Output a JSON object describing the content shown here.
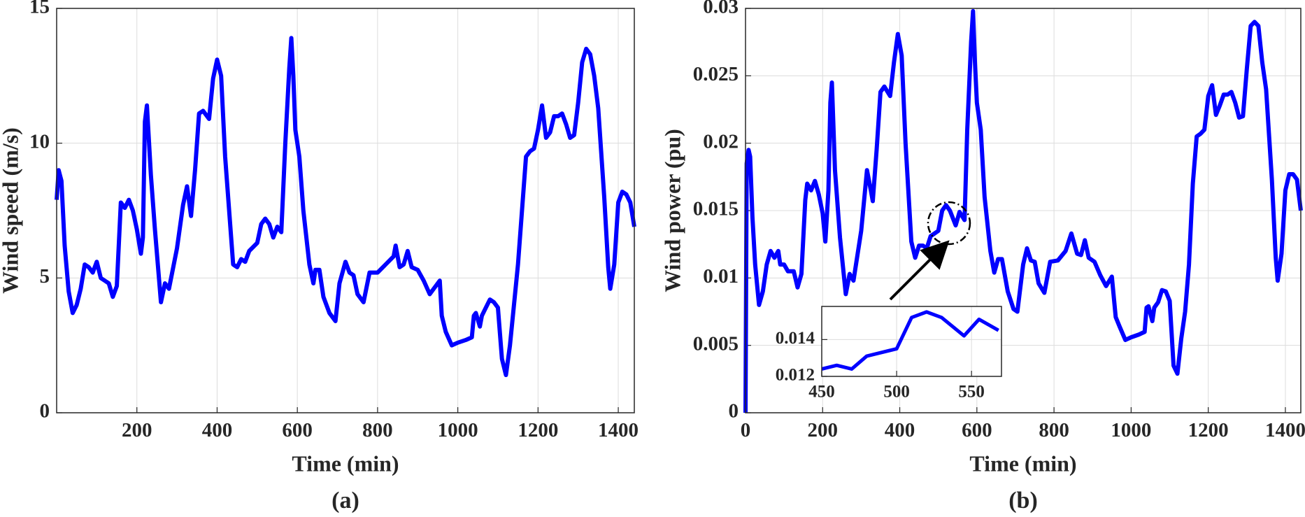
{
  "chart_data": [
    {
      "type": "line",
      "caption": "(a)",
      "xlabel": "Time (min)",
      "ylabel": "Wind speed (m/s)",
      "color": "#0000ff",
      "grid": true,
      "xlim": [
        0,
        1440
      ],
      "ylim": [
        0,
        15
      ],
      "xticks": [
        200,
        400,
        600,
        800,
        1000,
        1200,
        1400
      ],
      "yticks": [
        0,
        5,
        10,
        15
      ],
      "x": [
        0,
        5,
        12,
        20,
        30,
        40,
        50,
        60,
        70,
        80,
        90,
        100,
        110,
        120,
        130,
        140,
        150,
        160,
        170,
        180,
        190,
        200,
        210,
        215,
        220,
        225,
        235,
        245,
        260,
        270,
        280,
        300,
        315,
        325,
        335,
        345,
        355,
        365,
        380,
        390,
        400,
        410,
        420,
        440,
        450,
        460,
        470,
        480,
        500,
        510,
        520,
        530,
        540,
        550,
        560,
        570,
        580,
        585,
        590,
        595,
        605,
        615,
        630,
        640,
        645,
        655,
        665,
        680,
        695,
        705,
        720,
        730,
        740,
        750,
        765,
        780,
        800,
        820,
        840,
        845,
        855,
        865,
        875,
        885,
        900,
        915,
        930,
        945,
        955,
        960,
        970,
        985,
        1000,
        1020,
        1035,
        1040,
        1045,
        1055,
        1060,
        1070,
        1080,
        1090,
        1100,
        1110,
        1120,
        1130,
        1140,
        1150,
        1160,
        1170,
        1180,
        1190,
        1200,
        1210,
        1220,
        1230,
        1240,
        1250,
        1260,
        1270,
        1280,
        1290,
        1300,
        1310,
        1320,
        1330,
        1340,
        1350,
        1365,
        1375,
        1380,
        1390,
        1400,
        1410,
        1420,
        1430,
        1440
      ],
      "values": [
        7.9,
        9.0,
        8.6,
        6.2,
        4.5,
        3.7,
        4.0,
        4.6,
        5.5,
        5.4,
        5.2,
        5.6,
        5.0,
        4.9,
        4.8,
        4.3,
        4.7,
        7.8,
        7.6,
        7.9,
        7.5,
        6.8,
        5.9,
        6.5,
        10.8,
        11.4,
        8.8,
        6.8,
        4.1,
        4.8,
        4.6,
        6.1,
        7.7,
        8.4,
        7.3,
        9.0,
        11.1,
        11.2,
        10.9,
        12.4,
        13.1,
        12.5,
        9.5,
        5.5,
        5.4,
        5.7,
        5.6,
        6.0,
        6.3,
        7.0,
        7.2,
        7.0,
        6.5,
        6.9,
        6.7,
        10.0,
        12.8,
        13.9,
        12.5,
        10.5,
        9.5,
        7.5,
        5.5,
        4.8,
        5.3,
        5.3,
        4.3,
        3.7,
        3.4,
        4.8,
        5.6,
        5.2,
        5.1,
        4.4,
        4.1,
        5.2,
        5.2,
        5.5,
        5.8,
        6.2,
        5.4,
        5.5,
        6.0,
        5.4,
        5.3,
        4.9,
        4.4,
        4.7,
        4.9,
        3.6,
        3.0,
        2.5,
        2.6,
        2.7,
        2.8,
        3.6,
        3.7,
        3.2,
        3.6,
        3.9,
        4.2,
        4.1,
        3.9,
        2.0,
        1.4,
        2.5,
        4.0,
        5.5,
        7.5,
        9.5,
        9.7,
        9.8,
        10.5,
        11.4,
        10.2,
        10.4,
        11.0,
        11.0,
        11.1,
        10.7,
        10.2,
        10.3,
        11.5,
        13.0,
        13.5,
        13.3,
        12.5,
        11.3,
        8.0,
        5.4,
        4.6,
        5.5,
        7.8,
        8.2,
        8.1,
        7.8,
        6.9
      ]
    },
    {
      "type": "line",
      "caption": "(b)",
      "xlabel": "Time (min)",
      "ylabel": "Wind power (pu)",
      "color": "#0000ff",
      "grid": true,
      "xlim": [
        0,
        1440
      ],
      "ylim": [
        0,
        0.03
      ],
      "xticks": [
        0,
        200,
        400,
        600,
        800,
        1000,
        1200,
        1400
      ],
      "yticks": [
        0,
        0.005,
        0.01,
        0.015,
        0.02,
        0.025,
        0.03
      ],
      "x": [
        0,
        3,
        8,
        12,
        18,
        25,
        35,
        45,
        55,
        65,
        75,
        85,
        90,
        100,
        110,
        125,
        135,
        145,
        155,
        160,
        170,
        180,
        190,
        200,
        207,
        215,
        220,
        224,
        232,
        245,
        260,
        270,
        280,
        300,
        315,
        325,
        330,
        340,
        350,
        360,
        375,
        385,
        395,
        405,
        415,
        430,
        440,
        450,
        460,
        470,
        480,
        500,
        510,
        520,
        530,
        545,
        555,
        568,
        575,
        585,
        590,
        595,
        600,
        610,
        620,
        635,
        645,
        655,
        665,
        680,
        695,
        705,
        720,
        730,
        740,
        750,
        760,
        775,
        790,
        810,
        830,
        845,
        860,
        870,
        880,
        890,
        905,
        920,
        935,
        950,
        960,
        970,
        985,
        1000,
        1020,
        1035,
        1040,
        1045,
        1055,
        1060,
        1070,
        1080,
        1090,
        1100,
        1110,
        1120,
        1130,
        1140,
        1150,
        1160,
        1170,
        1180,
        1190,
        1200,
        1210,
        1220,
        1230,
        1240,
        1250,
        1260,
        1270,
        1280,
        1290,
        1300,
        1310,
        1320,
        1330,
        1340,
        1350,
        1365,
        1375,
        1380,
        1390,
        1400,
        1410,
        1420,
        1430,
        1440
      ],
      "values": [
        0,
        0.0185,
        0.0195,
        0.019,
        0.0145,
        0.011,
        0.008,
        0.009,
        0.011,
        0.012,
        0.0115,
        0.012,
        0.011,
        0.011,
        0.0105,
        0.0105,
        0.0093,
        0.0103,
        0.0158,
        0.017,
        0.0165,
        0.0172,
        0.0162,
        0.0148,
        0.0127,
        0.0165,
        0.023,
        0.0245,
        0.018,
        0.013,
        0.0088,
        0.0103,
        0.0098,
        0.0135,
        0.018,
        0.0165,
        0.0157,
        0.0195,
        0.0238,
        0.0242,
        0.0235,
        0.026,
        0.0281,
        0.0265,
        0.02,
        0.0127,
        0.0115,
        0.0124,
        0.0124,
        0.0122,
        0.0131,
        0.0135,
        0.015,
        0.0154,
        0.015,
        0.0139,
        0.0149,
        0.0143,
        0.021,
        0.0275,
        0.0298,
        0.026,
        0.023,
        0.021,
        0.016,
        0.012,
        0.0104,
        0.0114,
        0.0114,
        0.009,
        0.0077,
        0.0075,
        0.011,
        0.0122,
        0.0113,
        0.0112,
        0.0096,
        0.0089,
        0.0112,
        0.0113,
        0.012,
        0.0133,
        0.0118,
        0.0117,
        0.0128,
        0.0115,
        0.0112,
        0.0102,
        0.0094,
        0.0101,
        0.0071,
        0.0064,
        0.0054,
        0.0056,
        0.0058,
        0.006,
        0.0078,
        0.0079,
        0.0068,
        0.0078,
        0.0082,
        0.0091,
        0.009,
        0.0083,
        0.0035,
        0.0029,
        0.0055,
        0.0075,
        0.011,
        0.017,
        0.0205,
        0.0207,
        0.021,
        0.0235,
        0.0243,
        0.0221,
        0.0228,
        0.0236,
        0.0236,
        0.0238,
        0.023,
        0.0219,
        0.022,
        0.0255,
        0.0287,
        0.029,
        0.0287,
        0.026,
        0.024,
        0.0173,
        0.0115,
        0.0098,
        0.0118,
        0.0165,
        0.0177,
        0.0177,
        0.0173,
        0.015
      ]
    },
    {
      "type": "line",
      "color": "#0000ff",
      "grid": true,
      "xlim": [
        450,
        570
      ],
      "ylim": [
        0.012,
        0.0158
      ],
      "xticks": [
        450,
        500,
        550
      ],
      "yticks": [
        0.012,
        0.014
      ],
      "x": [
        450,
        460,
        470,
        480,
        500,
        510,
        520,
        530,
        545,
        555,
        568
      ],
      "values": [
        0.0124,
        0.0126,
        0.0124,
        0.0131,
        0.0135,
        0.0152,
        0.0155,
        0.0152,
        0.0142,
        0.0151,
        0.0145
      ]
    }
  ]
}
